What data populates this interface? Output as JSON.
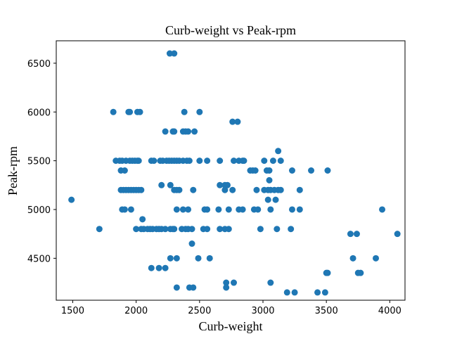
{
  "chart_data": {
    "type": "scatter",
    "title": "Curb-weight vs Peak-rpm",
    "xlabel": "Curb-weight",
    "ylabel": "Peak-rpm",
    "xlim": [
      1370,
      4120
    ],
    "ylim": [
      4070,
      6730
    ],
    "xticks": [
      1500,
      2000,
      2500,
      3000,
      3500,
      4000
    ],
    "yticks": [
      4500,
      5000,
      5500,
      6000,
      6500
    ],
    "grid": false,
    "marker_color": "#1f77b4",
    "points": [
      [
        2265,
        6600
      ],
      [
        2300,
        6600
      ],
      [
        1820,
        6000
      ],
      [
        1940,
        6000
      ],
      [
        1950,
        6000
      ],
      [
        2010,
        6000
      ],
      [
        2030,
        6000
      ],
      [
        2380,
        6000
      ],
      [
        2500,
        6000
      ],
      [
        2230,
        5800
      ],
      [
        2290,
        5800
      ],
      [
        2300,
        5800
      ],
      [
        2370,
        5800
      ],
      [
        2390,
        5800
      ],
      [
        2410,
        5800
      ],
      [
        2460,
        5800
      ],
      [
        2760,
        5900
      ],
      [
        2800,
        5900
      ],
      [
        1840,
        5500
      ],
      [
        1870,
        5500
      ],
      [
        1890,
        5500
      ],
      [
        1920,
        5500
      ],
      [
        1950,
        5500
      ],
      [
        1970,
        5500
      ],
      [
        1990,
        5500
      ],
      [
        2010,
        5500
      ],
      [
        2020,
        5500
      ],
      [
        2120,
        5500
      ],
      [
        2140,
        5500
      ],
      [
        2190,
        5500
      ],
      [
        2210,
        5500
      ],
      [
        2240,
        5500
      ],
      [
        2260,
        5500
      ],
      [
        2280,
        5500
      ],
      [
        2300,
        5500
      ],
      [
        2320,
        5500
      ],
      [
        2340,
        5500
      ],
      [
        2370,
        5500
      ],
      [
        2400,
        5500
      ],
      [
        2420,
        5500
      ],
      [
        2500,
        5500
      ],
      [
        2560,
        5500
      ],
      [
        2660,
        5500
      ],
      [
        2770,
        5500
      ],
      [
        2810,
        5500
      ],
      [
        2840,
        5500
      ],
      [
        2850,
        5500
      ],
      [
        3010,
        5500
      ],
      [
        3080,
        5500
      ],
      [
        3140,
        5500
      ],
      [
        3120,
        5600
      ],
      [
        1880,
        5400
      ],
      [
        1910,
        5400
      ],
      [
        2900,
        5400
      ],
      [
        2920,
        5400
      ],
      [
        2940,
        5400
      ],
      [
        3030,
        5400
      ],
      [
        3050,
        5400
      ],
      [
        3230,
        5400
      ],
      [
        3380,
        5400
      ],
      [
        3510,
        5400
      ],
      [
        3050,
        5300
      ],
      [
        2200,
        5250
      ],
      [
        2270,
        5250
      ],
      [
        2660,
        5250
      ],
      [
        2700,
        5250
      ],
      [
        2720,
        5250
      ],
      [
        1880,
        5200
      ],
      [
        1900,
        5200
      ],
      [
        1920,
        5200
      ],
      [
        1940,
        5200
      ],
      [
        1960,
        5200
      ],
      [
        1980,
        5200
      ],
      [
        2000,
        5200
      ],
      [
        2020,
        5200
      ],
      [
        2040,
        5200
      ],
      [
        2300,
        5200
      ],
      [
        2320,
        5200
      ],
      [
        2340,
        5200
      ],
      [
        2450,
        5200
      ],
      [
        2700,
        5200
      ],
      [
        2760,
        5200
      ],
      [
        2950,
        5200
      ],
      [
        3010,
        5200
      ],
      [
        3040,
        5200
      ],
      [
        3060,
        5200
      ],
      [
        3090,
        5200
      ],
      [
        3120,
        5200
      ],
      [
        3140,
        5200
      ],
      [
        3290,
        5200
      ],
      [
        3040,
        5100
      ],
      [
        3100,
        5100
      ],
      [
        1490,
        5100
      ],
      [
        1890,
        5000
      ],
      [
        1910,
        5000
      ],
      [
        1960,
        5000
      ],
      [
        2320,
        5000
      ],
      [
        2370,
        5000
      ],
      [
        2410,
        5000
      ],
      [
        2540,
        5000
      ],
      [
        2560,
        5000
      ],
      [
        2650,
        5000
      ],
      [
        2730,
        5000
      ],
      [
        2810,
        5000
      ],
      [
        2840,
        5000
      ],
      [
        2930,
        5000
      ],
      [
        2960,
        5000
      ],
      [
        3060,
        5000
      ],
      [
        3230,
        5000
      ],
      [
        3290,
        5000
      ],
      [
        3940,
        5000
      ],
      [
        2050,
        4900
      ],
      [
        1710,
        4800
      ],
      [
        2000,
        4800
      ],
      [
        2040,
        4800
      ],
      [
        2060,
        4800
      ],
      [
        2090,
        4800
      ],
      [
        2110,
        4800
      ],
      [
        2130,
        4800
      ],
      [
        2160,
        4800
      ],
      [
        2180,
        4800
      ],
      [
        2200,
        4800
      ],
      [
        2230,
        4800
      ],
      [
        2270,
        4800
      ],
      [
        2290,
        4800
      ],
      [
        2300,
        4800
      ],
      [
        2360,
        4800
      ],
      [
        2390,
        4800
      ],
      [
        2410,
        4800
      ],
      [
        2440,
        4800
      ],
      [
        2530,
        4800
      ],
      [
        2560,
        4800
      ],
      [
        2660,
        4800
      ],
      [
        2700,
        4800
      ],
      [
        2730,
        4800
      ],
      [
        2980,
        4800
      ],
      [
        3110,
        4800
      ],
      [
        3220,
        4800
      ],
      [
        2440,
        4650
      ],
      [
        2270,
        4500
      ],
      [
        2320,
        4500
      ],
      [
        2490,
        4500
      ],
      [
        2580,
        4500
      ],
      [
        3690,
        4750
      ],
      [
        3740,
        4750
      ],
      [
        4060,
        4750
      ],
      [
        3710,
        4500
      ],
      [
        3890,
        4500
      ],
      [
        2120,
        4400
      ],
      [
        2180,
        4400
      ],
      [
        2230,
        4400
      ],
      [
        3500,
        4350
      ],
      [
        3510,
        4350
      ],
      [
        3750,
        4350
      ],
      [
        3770,
        4350
      ],
      [
        2710,
        4250
      ],
      [
        2770,
        4250
      ],
      [
        3060,
        4250
      ],
      [
        2320,
        4200
      ],
      [
        2420,
        4200
      ],
      [
        2450,
        4200
      ],
      [
        2710,
        4200
      ],
      [
        3190,
        4150
      ],
      [
        3250,
        4150
      ],
      [
        3430,
        4150
      ],
      [
        3490,
        4150
      ]
    ]
  }
}
